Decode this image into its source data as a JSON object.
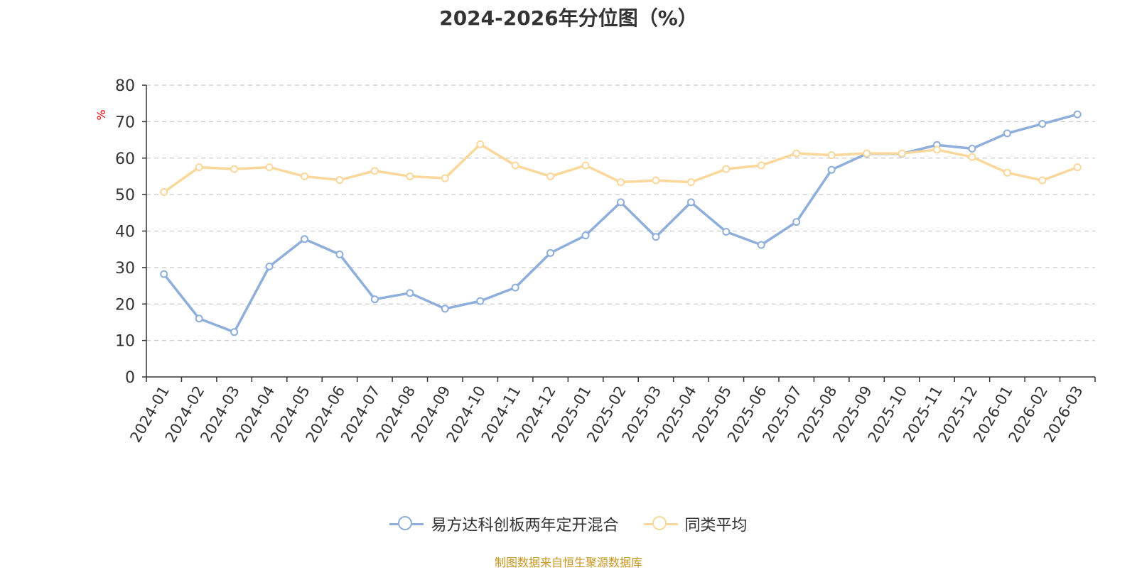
{
  "title": "2024-2026年分位图（%）",
  "source": "制图数据来自恒生聚源数据库",
  "colors": {
    "series1": "#8eaedc",
    "series2": "#fad79a",
    "axis": "#333333",
    "grid": "#cccccc",
    "unit": "#ff0000"
  },
  "chart_data": {
    "type": "line",
    "title": "2024-2026年分位图（%）",
    "ylabel": "%",
    "ylim": [
      0,
      80
    ],
    "yticks": [
      0,
      10,
      20,
      30,
      40,
      50,
      60,
      70,
      80
    ],
    "grid": true,
    "legend_position": "bottom",
    "categories": [
      "2024-01",
      "2024-02",
      "2024-03",
      "2024-04",
      "2024-05",
      "2024-06",
      "2024-07",
      "2024-08",
      "2024-09",
      "2024-10",
      "2024-11",
      "2024-12",
      "2025-01",
      "2025-02",
      "2025-03",
      "2025-04",
      "2025-05",
      "2025-06",
      "2025-07",
      "2025-08",
      "2025-09",
      "2025-10",
      "2025-11",
      "2025-12",
      "2026-01",
      "2026-02",
      "2026-03"
    ],
    "series": [
      {
        "name": "易方达科创板两年定开混合",
        "values": [
          28.2,
          16.0,
          12.3,
          30.3,
          37.8,
          33.6,
          21.3,
          23.0,
          18.7,
          20.8,
          24.5,
          34.0,
          38.8,
          47.9,
          38.4,
          47.9,
          39.8,
          36.2,
          42.5,
          56.8,
          61.2,
          61.2,
          63.6,
          62.6,
          66.8,
          69.4,
          72.0
        ]
      },
      {
        "name": "同类平均",
        "values": [
          50.7,
          57.5,
          57.0,
          57.5,
          55.0,
          54.0,
          56.5,
          55.0,
          54.5,
          63.8,
          58.0,
          55.0,
          58.0,
          53.4,
          53.9,
          53.4,
          57.0,
          58.0,
          61.3,
          60.8,
          61.3,
          61.3,
          62.3,
          60.3,
          56.0,
          53.9,
          57.5
        ]
      }
    ]
  },
  "legend": [
    {
      "label": "易方达科创板两年定开混合"
    },
    {
      "label": "同类平均"
    }
  ]
}
